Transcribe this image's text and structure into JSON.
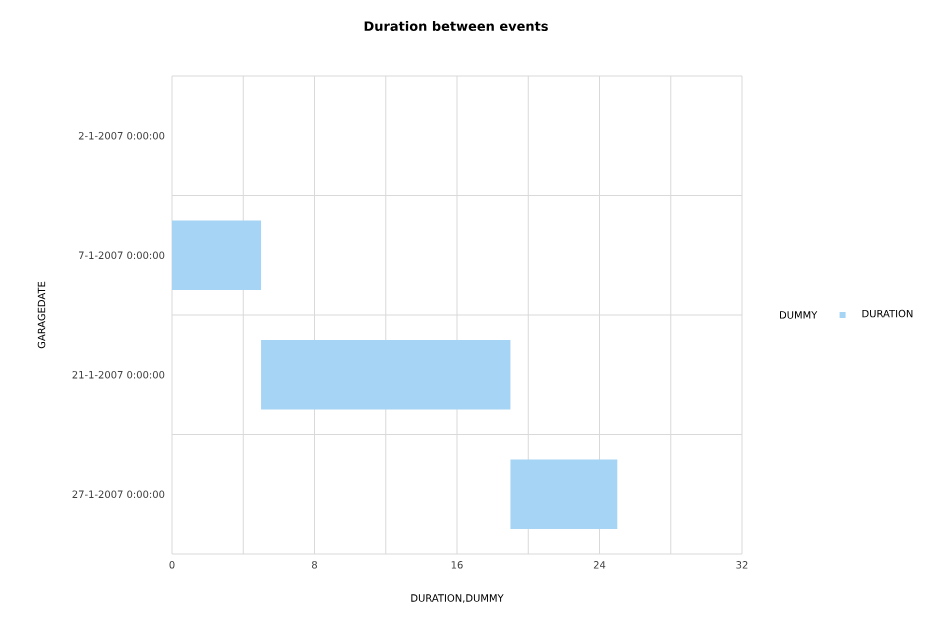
{
  "chart_data": {
    "type": "bar",
    "orientation": "horizontal",
    "title": "Duration between events",
    "xlabel": "DURATION,DUMMY",
    "ylabel": "GARAGEDATE",
    "categories": [
      "2-1-2007 0:00:00",
      "7-1-2007 0:00:00",
      "21-1-2007 0:00:00",
      "27-1-2007 0:00:00"
    ],
    "series": [
      {
        "name": "DURATION",
        "color": "#a6d4f5",
        "values": [
          null,
          5,
          14,
          6
        ],
        "base": [
          null,
          0,
          5,
          19
        ]
      }
    ],
    "annotations": [
      "DUMMY"
    ],
    "xlim": [
      0,
      32
    ],
    "xticks": [
      0,
      {
        "value": 4,
        "label": null
      },
      8,
      {
        "value": 12,
        "label": null
      },
      16,
      {
        "value": 20,
        "label": null
      },
      24,
      {
        "value": 28,
        "label": null
      },
      32
    ],
    "grid": true,
    "legend": "right"
  }
}
